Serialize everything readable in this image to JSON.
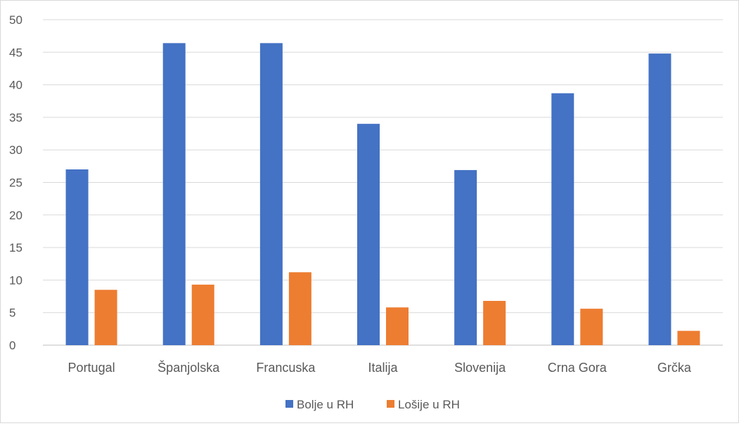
{
  "chart_data": {
    "type": "bar",
    "title": "",
    "xlabel": "",
    "ylabel": "",
    "ylim": [
      0,
      50
    ],
    "yticks": [
      0,
      5,
      10,
      15,
      20,
      25,
      30,
      35,
      40,
      45,
      50
    ],
    "grid": true,
    "legend_position": "bottom",
    "categories": [
      "Portugal",
      "Španjolska",
      "Francuska",
      "Italija",
      "Slovenija",
      "Crna Gora",
      "Grčka"
    ],
    "series": [
      {
        "name": "Bolje u RH",
        "color": "#4472C4",
        "values": [
          27.0,
          46.4,
          46.4,
          34.0,
          26.9,
          38.7,
          44.8
        ]
      },
      {
        "name": "Lošije u RH",
        "color": "#ED7D31",
        "values": [
          8.5,
          9.3,
          11.2,
          5.8,
          6.8,
          5.6,
          2.2
        ]
      }
    ]
  }
}
